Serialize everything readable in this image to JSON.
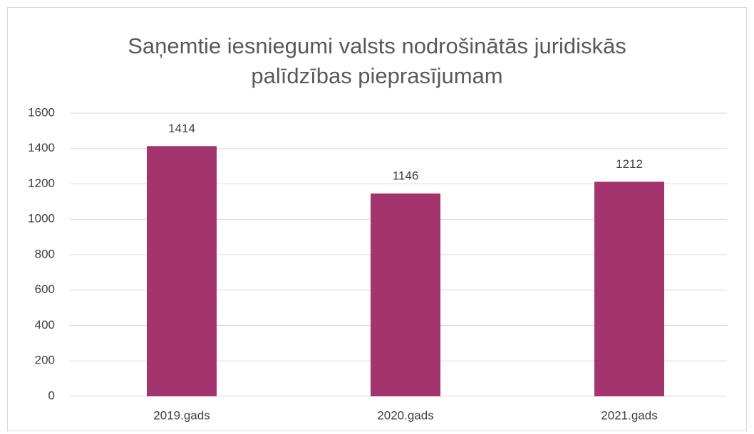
{
  "chart_data": {
    "type": "bar",
    "title": "Saņemtie iesniegumi valsts nodrošinātās juridiskās\npalīdzības pieprasījumam",
    "categories": [
      "2019.gads",
      "2020.gads",
      "2021.gads"
    ],
    "values": [
      1414,
      1146,
      1212
    ],
    "color": "#a3346e",
    "ylim": [
      0,
      1600
    ],
    "yticks": [
      0,
      200,
      400,
      600,
      800,
      1000,
      1200,
      1400,
      1600
    ],
    "grid": true
  }
}
